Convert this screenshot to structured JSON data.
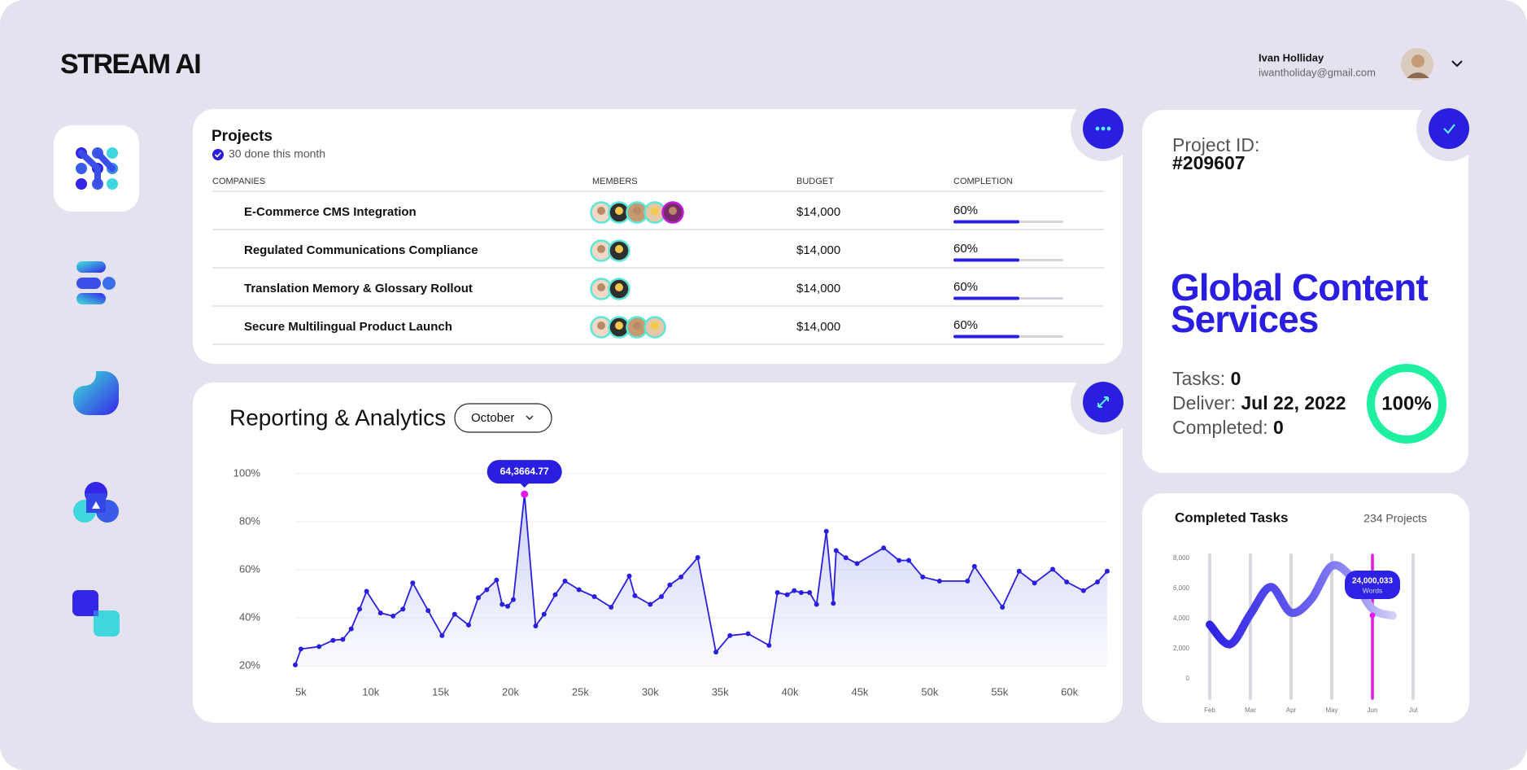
{
  "header": {
    "logo": "STREAM AI",
    "user_name": "Ivan Holliday",
    "user_email": "iwantholiday@gmail.com"
  },
  "projects": {
    "title": "Projects",
    "subtitle": "30 done this month",
    "columns": [
      "COMPANIES",
      "MEMBERS",
      "BUDGET",
      "COMPLETION"
    ],
    "rows": [
      {
        "company": "E-Commerce CMS Integration",
        "members": 5,
        "budget": "$14,000",
        "completion": {
          "value": 60,
          "label": "60%"
        }
      },
      {
        "company": "Regulated Communications Compliance",
        "members": 2,
        "budget": "$14,000",
        "completion": {
          "value": 60,
          "label": "60%"
        }
      },
      {
        "company": "Translation Memory & Glossary Rollout",
        "members": 2,
        "budget": "$14,000",
        "completion": {
          "value": 60,
          "label": "60%"
        }
      },
      {
        "company": "Secure Multilingual Product Launch",
        "members": 4,
        "budget": "$14,000",
        "completion": {
          "value": 60,
          "label": "60%"
        }
      }
    ]
  },
  "analytics": {
    "title": "Reporting & Analytics",
    "month": "October"
  },
  "project_card": {
    "id_label": "Project ID:",
    "id": "#209607",
    "name_lines": [
      "Global Content",
      "Services"
    ],
    "tasks_label": "Tasks:",
    "tasks": 0,
    "deliver_label": "Deliver:",
    "deliver": "Jul 22, 2022",
    "completed_label": "Completed:",
    "completed": 0,
    "progress": {
      "value": 100,
      "label": "100%"
    }
  },
  "tasks_card": {
    "title": "Completed Tasks",
    "count": "234 Projects"
  },
  "chart_data": [
    {
      "type": "line",
      "color": "#2a1fe0",
      "highlight_color": "#e21be8",
      "annotation": "64,3664.77",
      "grid": true,
      "xlim": [
        4.6,
        62.7
      ],
      "ylim": [
        20,
        100
      ],
      "xticks": [
        {
          "value": 5,
          "label": "5k"
        },
        {
          "value": 10,
          "label": "10k"
        },
        {
          "value": 15,
          "label": "15k"
        },
        {
          "value": 20,
          "label": "20k"
        },
        {
          "value": 25,
          "label": "25k"
        },
        {
          "value": 30,
          "label": "30k"
        },
        {
          "value": 35,
          "label": "35k"
        },
        {
          "value": 40,
          "label": "40k"
        },
        {
          "value": 45,
          "label": "45k"
        },
        {
          "value": 50,
          "label": "50k"
        },
        {
          "value": 55,
          "label": "55k"
        },
        {
          "value": 60,
          "label": "60k"
        }
      ],
      "yticks": [
        {
          "value": 20,
          "label": "20%"
        },
        {
          "value": 40,
          "label": "40%"
        },
        {
          "value": 60,
          "label": "60%"
        },
        {
          "value": 80,
          "label": "80%"
        },
        {
          "value": 100,
          "label": "100%"
        }
      ],
      "x": [
        4.6,
        5.0,
        6.3,
        7.3,
        8.0,
        8.6,
        9.2,
        9.7,
        10.7,
        11.6,
        12.3,
        13.0,
        14.1,
        15.1,
        16.0,
        17.0,
        17.7,
        18.3,
        19.0,
        19.4,
        19.8,
        20.2,
        21.0,
        21.8,
        22.4,
        23.2,
        23.9,
        24.9,
        26.0,
        27.2,
        28.5,
        28.9,
        30.0,
        30.8,
        31.4,
        32.2,
        33.4,
        34.7,
        35.7,
        37.0,
        38.5,
        39.1,
        39.8,
        40.3,
        40.8,
        41.4,
        41.9,
        42.6,
        43.1,
        43.3,
        44.0,
        44.8,
        46.7,
        47.8,
        48.5,
        49.5,
        50.7,
        52.7,
        53.2,
        55.2,
        56.4,
        57.5,
        58.8,
        59.8,
        61.0,
        62.0,
        62.7
      ],
      "values": [
        20.4,
        27,
        28,
        30.6,
        31,
        35.4,
        43.6,
        51,
        42,
        40.7,
        43.6,
        54.5,
        43,
        32.6,
        41.5,
        37,
        48.4,
        51.7,
        55.7,
        45.6,
        44.8,
        47.6,
        91.5,
        36.6,
        41.5,
        49.6,
        55.3,
        51.7,
        48.8,
        44.4,
        57.4,
        49.2,
        45.6,
        48.8,
        53.7,
        57,
        65.1,
        25.7,
        32.6,
        33.4,
        28.5,
        50.5,
        49.6,
        51.3,
        50.5,
        50.5,
        45.6,
        76,
        46,
        68,
        65,
        62.6,
        69.1,
        63.9,
        63.9,
        57,
        55.3,
        55.3,
        61.4,
        44.4,
        59.4,
        54.5,
        60.2,
        54.9,
        51.3,
        54.9,
        59.4
      ]
    },
    {
      "type": "line",
      "colors": [
        "#2e22e6",
        "#a9a4f4"
      ],
      "highlight_color": "#e21be8",
      "highlight": "Jun",
      "annotation": [
        "24,000,033",
        "Words"
      ],
      "ylim": [
        0,
        8000
      ],
      "yticks": [
        0,
        {
          "value": 2000,
          "label": "2,000"
        },
        {
          "value": 4000,
          "label": "4,000"
        },
        {
          "value": 6000,
          "label": "6,000"
        },
        {
          "value": 8000,
          "label": "8,000"
        }
      ],
      "categories": [
        "Feb",
        null,
        "Mar",
        null,
        "Apr",
        null,
        "May",
        null,
        "Jun",
        null,
        "Jul"
      ],
      "values": [
        3600,
        2300,
        4300,
        6100,
        4400,
        5300,
        7500,
        6700,
        4650,
        4200,
        null
      ]
    }
  ]
}
